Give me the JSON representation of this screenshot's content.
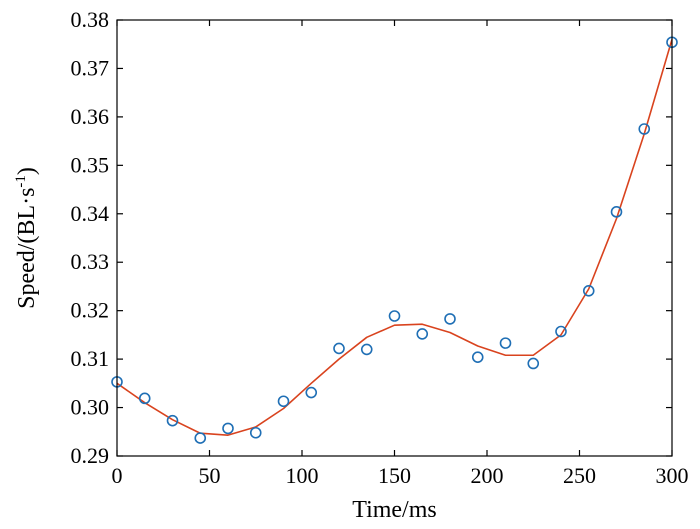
{
  "chart_data": {
    "type": "scatter",
    "xlabel": "Time/ms",
    "ylabel_main": "Speed/(BL·s",
    "ylabel_sup": "-1",
    "ylabel_tail": ")",
    "xlim": [
      0,
      300
    ],
    "ylim": [
      0.29,
      0.38
    ],
    "xticks": [
      "0",
      "50",
      "100",
      "150",
      "200",
      "250",
      "300"
    ],
    "yticks": [
      "0.29",
      "0.30",
      "0.31",
      "0.32",
      "0.33",
      "0.34",
      "0.35",
      "0.36",
      "0.37",
      "0.38"
    ],
    "grid": false,
    "legend": "none",
    "series": [
      {
        "kind": "markers",
        "marker": "circle-open",
        "color": "#1f6fb5",
        "x": [
          0,
          15,
          30,
          45,
          60,
          75,
          90,
          105,
          120,
          135,
          150,
          165,
          180,
          195,
          210,
          225,
          240,
          255,
          270,
          285,
          300
        ],
        "y": [
          0.3053,
          0.3019,
          0.2973,
          0.2937,
          0.2957,
          0.2948,
          0.3013,
          0.3031,
          0.3122,
          0.312,
          0.3189,
          0.3152,
          0.3183,
          0.3104,
          0.3133,
          0.3091,
          0.3157,
          0.3241,
          0.3404,
          0.3575,
          0.3754
        ]
      },
      {
        "kind": "line",
        "color": "#d9431e",
        "x": [
          0,
          15,
          30,
          45,
          60,
          75,
          90,
          105,
          120,
          135,
          150,
          165,
          180,
          195,
          210,
          225,
          240,
          255,
          270,
          285,
          300
        ],
        "y": [
          0.305,
          0.301,
          0.2975,
          0.2947,
          0.2943,
          0.296,
          0.2998,
          0.305,
          0.31,
          0.3145,
          0.317,
          0.3172,
          0.3155,
          0.3127,
          0.3108,
          0.3108,
          0.315,
          0.3245,
          0.339,
          0.3565,
          0.376
        ]
      }
    ]
  }
}
